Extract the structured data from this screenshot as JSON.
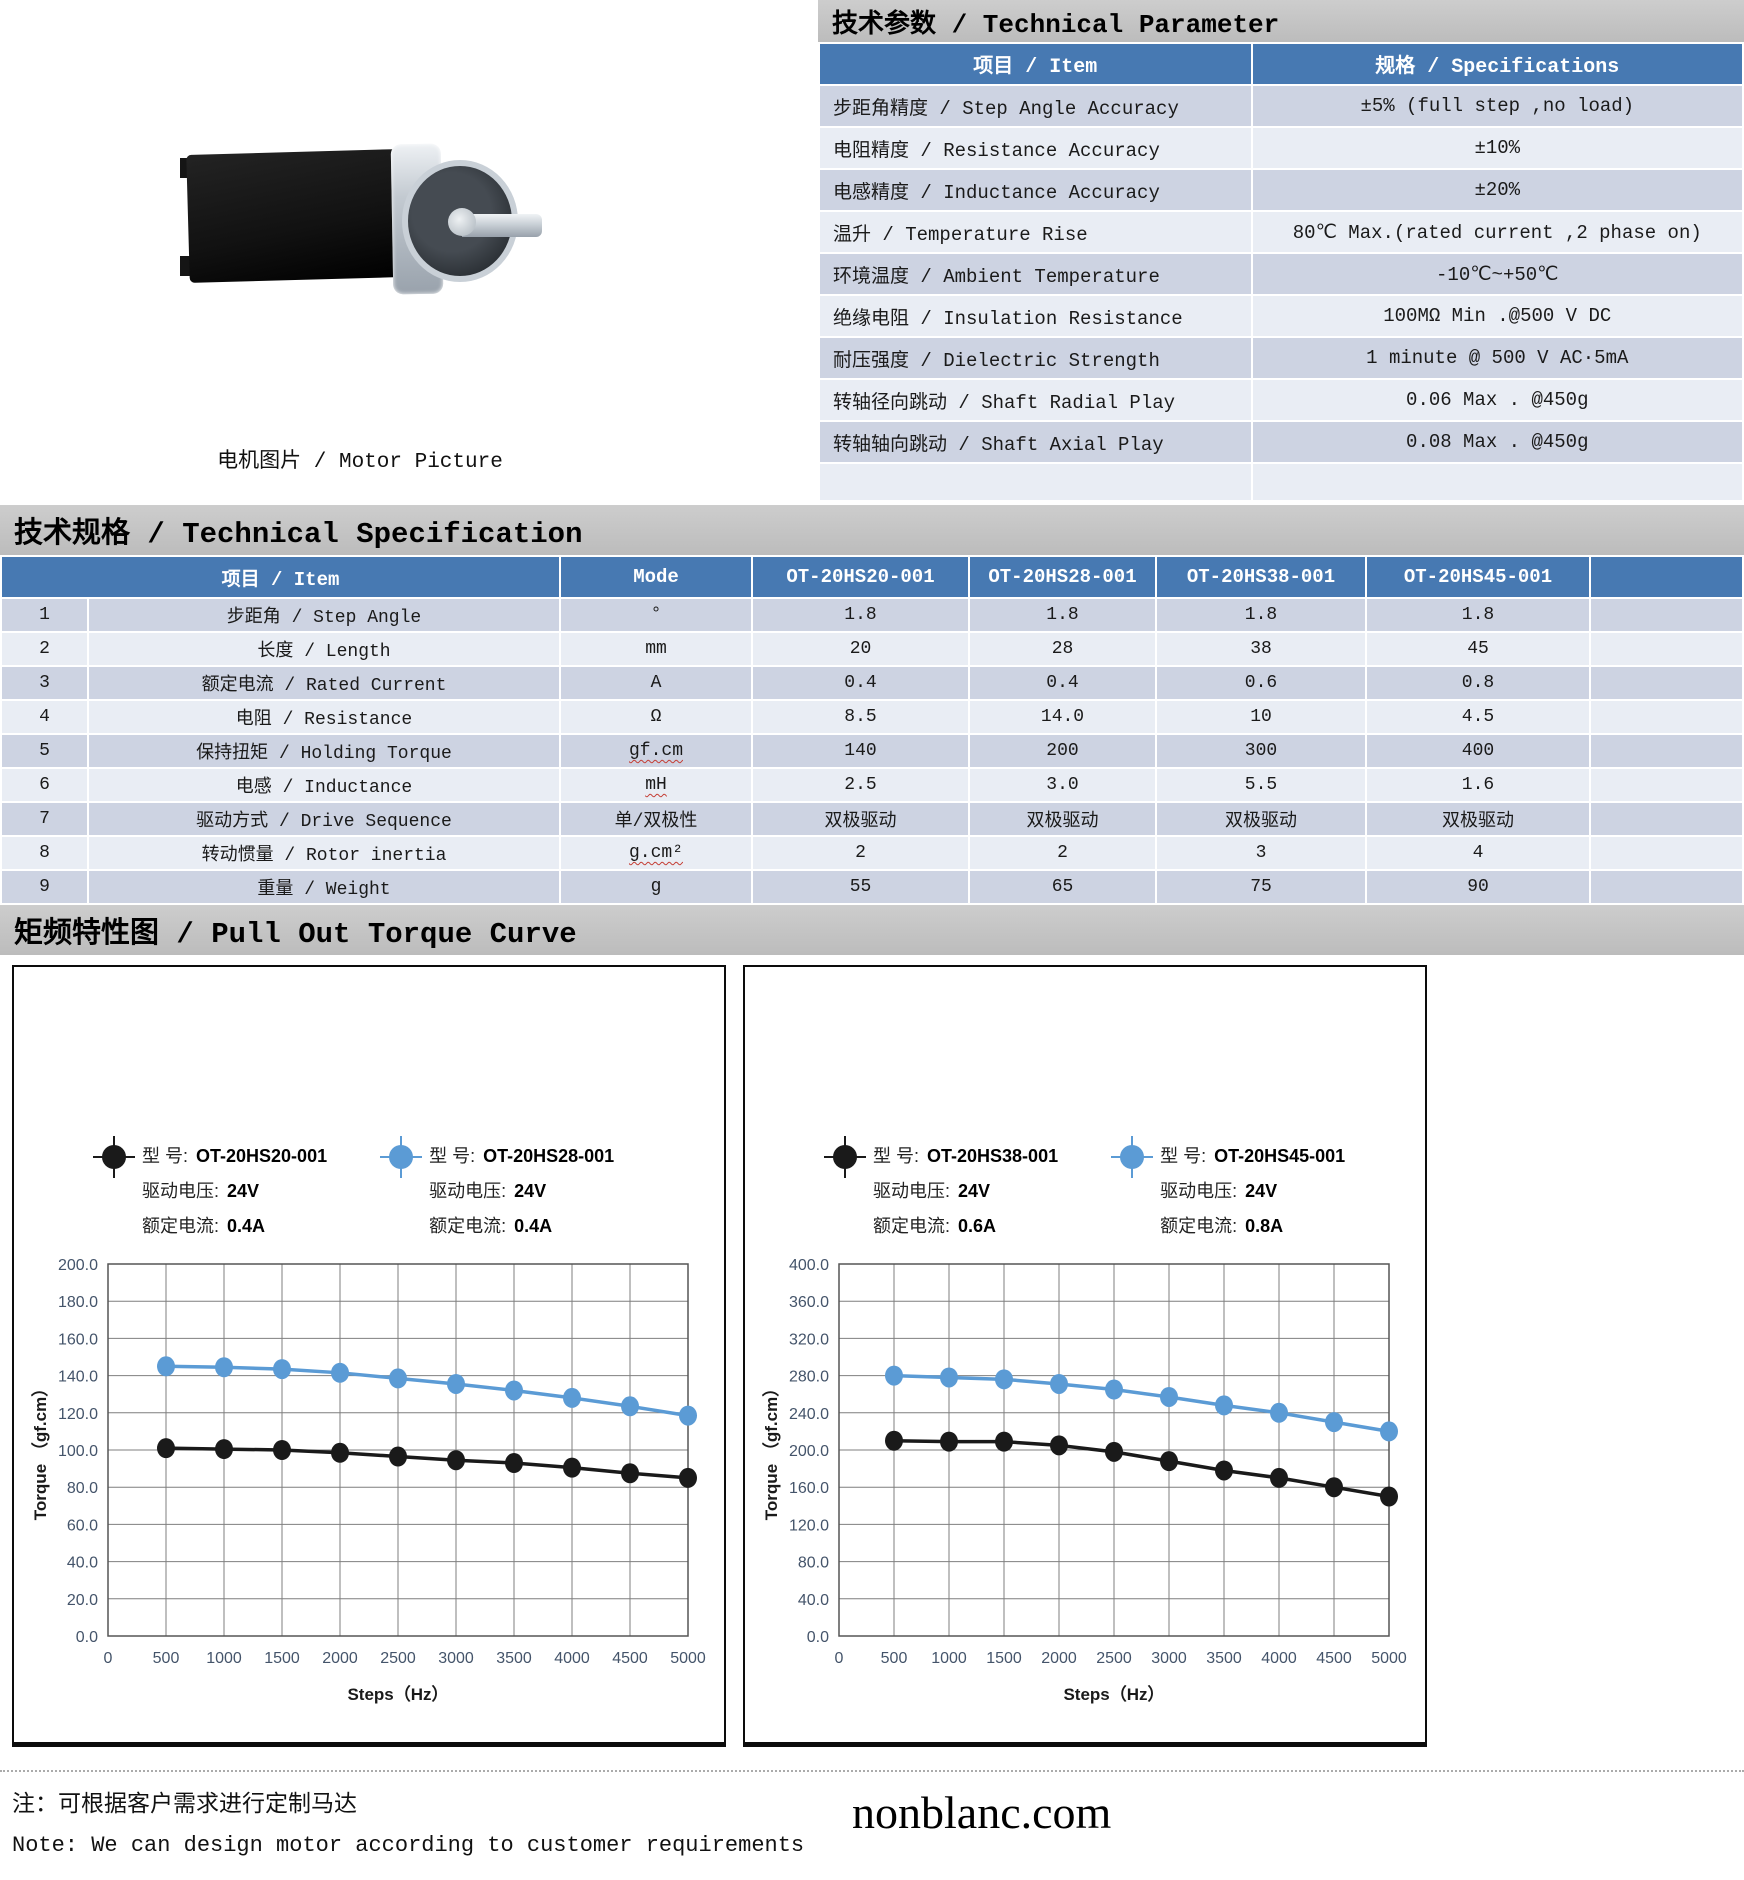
{
  "motor": {
    "caption": "电机图片 / Motor Picture"
  },
  "colors": {
    "header_blue": "#4779b2",
    "row_dark": "#cdd3e2",
    "row_light": "#e9edf4",
    "series_black": "#1a1a1a",
    "series_blue": "#5b9bd5",
    "title_bar_gray": "#c4c4c4"
  },
  "technical_parameter": {
    "title": "技术参数 / Technical Parameter",
    "columns": [
      "项目 / Item",
      "规格 / Specifications"
    ],
    "rows": [
      [
        "步距角精度 / Step Angle Accuracy",
        "±5% (full step ,no load)"
      ],
      [
        "电阻精度 / Resistance Accuracy",
        "±10%"
      ],
      [
        "电感精度 / Inductance Accuracy",
        "±20%"
      ],
      [
        "温升 / Temperature Rise",
        "80℃ Max.(rated current ,2 phase on)"
      ],
      [
        "环境温度 / Ambient Temperature",
        "-10℃~+50℃"
      ],
      [
        "绝缘电阻 / Insulation Resistance",
        "100MΩ Min .@500 V DC"
      ],
      [
        "耐压强度 / Dielectric Strength",
        "1 minute @ 500 V AC·5mA"
      ],
      [
        "转轴径向跳动 / Shaft Radial Play",
        "0.06 Max . @450g"
      ],
      [
        "转轴轴向跳动 / Shaft Axial Play",
        "0.08 Max . @450g"
      ]
    ]
  },
  "technical_specification": {
    "title": "技术规格 / Technical Specification",
    "columns": [
      "项目 / Item",
      "Mode",
      "OT-20HS20-001",
      "OT-20HS28-001",
      "OT-20HS38-001",
      "OT-20HS45-001",
      ""
    ],
    "rows": [
      {
        "no": "1",
        "item": "步距角 / Step Angle",
        "mode": "°",
        "wavy": false,
        "values": [
          "1.8",
          "1.8",
          "1.8",
          "1.8"
        ]
      },
      {
        "no": "2",
        "item": "长度 / Length",
        "mode": "mm",
        "wavy": false,
        "values": [
          "20",
          "28",
          "38",
          "45"
        ]
      },
      {
        "no": "3",
        "item": "额定电流 / Rated Current",
        "mode": "A",
        "wavy": false,
        "values": [
          "0.4",
          "0.4",
          "0.6",
          "0.8"
        ]
      },
      {
        "no": "4",
        "item": "电阻 / Resistance",
        "mode": "Ω",
        "wavy": false,
        "values": [
          "8.5",
          "14.0",
          "10",
          "4.5"
        ]
      },
      {
        "no": "5",
        "item": "保持扭矩 / Holding Torque",
        "mode": "gf.cm",
        "wavy": true,
        "values": [
          "140",
          "200",
          "300",
          "400"
        ]
      },
      {
        "no": "6",
        "item": "电感 / Inductance",
        "mode": "mH",
        "wavy": true,
        "values": [
          "2.5",
          "3.0",
          "5.5",
          "1.6"
        ]
      },
      {
        "no": "7",
        "item": "驱动方式 / Drive Sequence",
        "mode": "单/双极性",
        "wavy": false,
        "values": [
          "双极驱动",
          "双极驱动",
          "双极驱动",
          "双极驱动"
        ]
      },
      {
        "no": "8",
        "item": "转动惯量 / Rotor inertia",
        "mode": "g.cm²",
        "wavy": true,
        "values": [
          "2",
          "2",
          "3",
          "4"
        ]
      },
      {
        "no": "9",
        "item": "重量 / Weight",
        "mode": "g",
        "wavy": false,
        "values": [
          "55",
          "65",
          "75",
          "90"
        ]
      }
    ]
  },
  "torque_curve": {
    "title": "矩频特性图 / Pull Out Torque Curve"
  },
  "chart_data": [
    {
      "type": "line",
      "title": "Pull Out Torque Curve (OT-20HS20 / OT-20HS28)",
      "xlabel": "Steps（Hz）",
      "ylabel": "Torque （gf.cm）",
      "x": [
        500,
        1000,
        1500,
        2000,
        2500,
        3000,
        3500,
        4000,
        4500,
        5000
      ],
      "xlim": [
        0,
        5000
      ],
      "xstep": 500,
      "ylim": [
        0,
        200
      ],
      "ystep": 20,
      "grid": true,
      "legend_position": "top",
      "legend_labels": {
        "model": "型  号:",
        "voltage": "驱动电压:",
        "current": "额定电流:"
      },
      "series": [
        {
          "name": "OT-20HS20-001",
          "voltage": "24V",
          "current": "0.4A",
          "color": "#1a1a1a",
          "values": [
            101,
            100.5,
            100,
            98.5,
            96.5,
            94.5,
            93,
            90.5,
            87.5,
            85
          ]
        },
        {
          "name": "OT-20HS28-001",
          "voltage": "24V",
          "current": "0.4A",
          "color": "#5b9bd5",
          "values": [
            145,
            144.5,
            143.5,
            141.5,
            138.5,
            135.5,
            132,
            128,
            123.5,
            118.5
          ]
        }
      ]
    },
    {
      "type": "line",
      "title": "Pull Out Torque Curve (OT-20HS38 / OT-20HS45)",
      "xlabel": "Steps（Hz）",
      "ylabel": "Torque （gf.cm）",
      "x": [
        500,
        1000,
        1500,
        2000,
        2500,
        3000,
        3500,
        4000,
        4500,
        5000
      ],
      "xlim": [
        0,
        5000
      ],
      "xstep": 500,
      "ylim": [
        0,
        400
      ],
      "ystep": 40,
      "grid": true,
      "legend_position": "top",
      "legend_labels": {
        "model": "型  号:",
        "voltage": "驱动电压:",
        "current": "额定电流:"
      },
      "series": [
        {
          "name": "OT-20HS38-001",
          "voltage": "24V",
          "current": "0.6A",
          "color": "#1a1a1a",
          "values": [
            210,
            209,
            209,
            205,
            198,
            188,
            178,
            170,
            160,
            150
          ]
        },
        {
          "name": "OT-20HS45-001",
          "voltage": "24V",
          "current": "0.8A",
          "color": "#5b9bd5",
          "values": [
            280,
            278,
            276,
            271,
            265,
            257,
            248,
            240,
            230,
            220
          ]
        }
      ]
    }
  ],
  "footer": {
    "note_cn": "注：可根据客户需求进行定制马达",
    "note_en": "Note: We can design motor according to customer requirements",
    "website": "nonblanc.com"
  }
}
